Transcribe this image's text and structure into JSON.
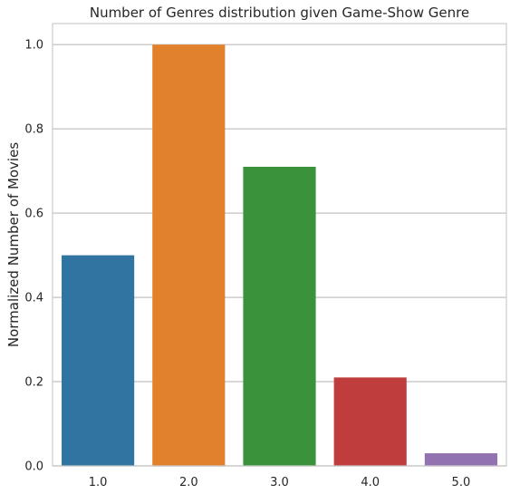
{
  "chart_data": {
    "type": "bar",
    "title": "Number of Genres distribution given Game-Show Genre",
    "xlabel": "",
    "ylabel": "Normalized Number of Movies",
    "categories": [
      "1.0",
      "2.0",
      "3.0",
      "4.0",
      "5.0"
    ],
    "values": [
      0.5,
      1.0,
      0.71,
      0.21,
      0.03
    ],
    "colors": [
      "#3274a1",
      "#e1812c",
      "#3a923a",
      "#c03d3e",
      "#9372b2"
    ],
    "ylim": [
      0,
      1.05
    ],
    "yticks": [
      0.0,
      0.2,
      0.4,
      0.6,
      0.8,
      1.0
    ],
    "ytick_labels": [
      "0.0",
      "0.2",
      "0.4",
      "0.6",
      "0.8",
      "1.0"
    ],
    "grid": "horizontal",
    "legend": "none"
  }
}
